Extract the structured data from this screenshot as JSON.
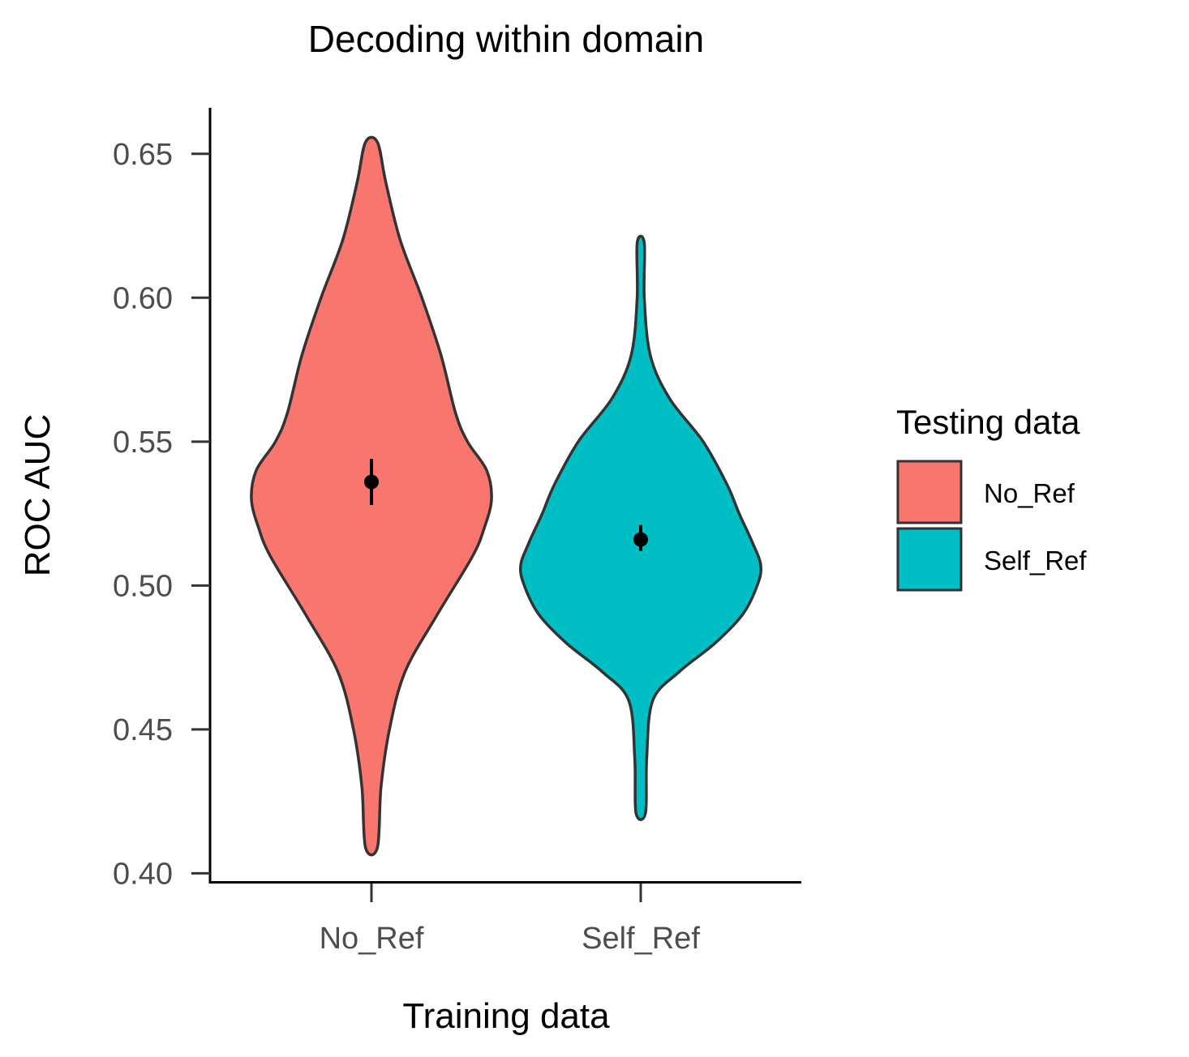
{
  "chart_data": {
    "type": "violin",
    "title": "Decoding within domain",
    "xlabel": "Training data",
    "ylabel": "ROC AUC",
    "categories": [
      "No_Ref",
      "Self_Ref"
    ],
    "ylim": [
      0.397,
      0.666
    ],
    "yticks": [
      "0.40",
      "0.45",
      "0.50",
      "0.55",
      "0.60",
      "0.65"
    ],
    "ytick_values": [
      0.4,
      0.45,
      0.5,
      0.55,
      0.6,
      0.65
    ],
    "legend": {
      "title": "Testing data",
      "placement": "right",
      "entries": [
        "No_Ref",
        "Self_Ref"
      ]
    },
    "series": [
      {
        "name": "No_Ref",
        "category": "No_Ref",
        "color": "#F8766D",
        "min": 0.409,
        "max": 0.654,
        "mean": 0.536,
        "error_low": 0.528,
        "error_high": 0.544,
        "density_profile": [
          [
            0.409,
            0.05
          ],
          [
            0.43,
            0.08
          ],
          [
            0.45,
            0.15
          ],
          [
            0.47,
            0.28
          ],
          [
            0.49,
            0.55
          ],
          [
            0.51,
            0.84
          ],
          [
            0.52,
            0.94
          ],
          [
            0.53,
            1.0
          ],
          [
            0.54,
            0.96
          ],
          [
            0.55,
            0.8
          ],
          [
            0.56,
            0.7
          ],
          [
            0.58,
            0.58
          ],
          [
            0.6,
            0.42
          ],
          [
            0.62,
            0.24
          ],
          [
            0.64,
            0.12
          ],
          [
            0.654,
            0.05
          ]
        ]
      },
      {
        "name": "Self_Ref",
        "category": "Self_Ref",
        "color": "#00BFC4",
        "min": 0.421,
        "max": 0.619,
        "mean": 0.516,
        "error_low": 0.512,
        "error_high": 0.521,
        "density_profile": [
          [
            0.421,
            0.04
          ],
          [
            0.44,
            0.05
          ],
          [
            0.46,
            0.1
          ],
          [
            0.47,
            0.32
          ],
          [
            0.48,
            0.62
          ],
          [
            0.49,
            0.85
          ],
          [
            0.5,
            0.97
          ],
          [
            0.507,
            1.0
          ],
          [
            0.515,
            0.93
          ],
          [
            0.525,
            0.82
          ],
          [
            0.535,
            0.72
          ],
          [
            0.55,
            0.52
          ],
          [
            0.565,
            0.24
          ],
          [
            0.58,
            0.08
          ],
          [
            0.6,
            0.03
          ],
          [
            0.619,
            0.03
          ]
        ]
      }
    ]
  }
}
